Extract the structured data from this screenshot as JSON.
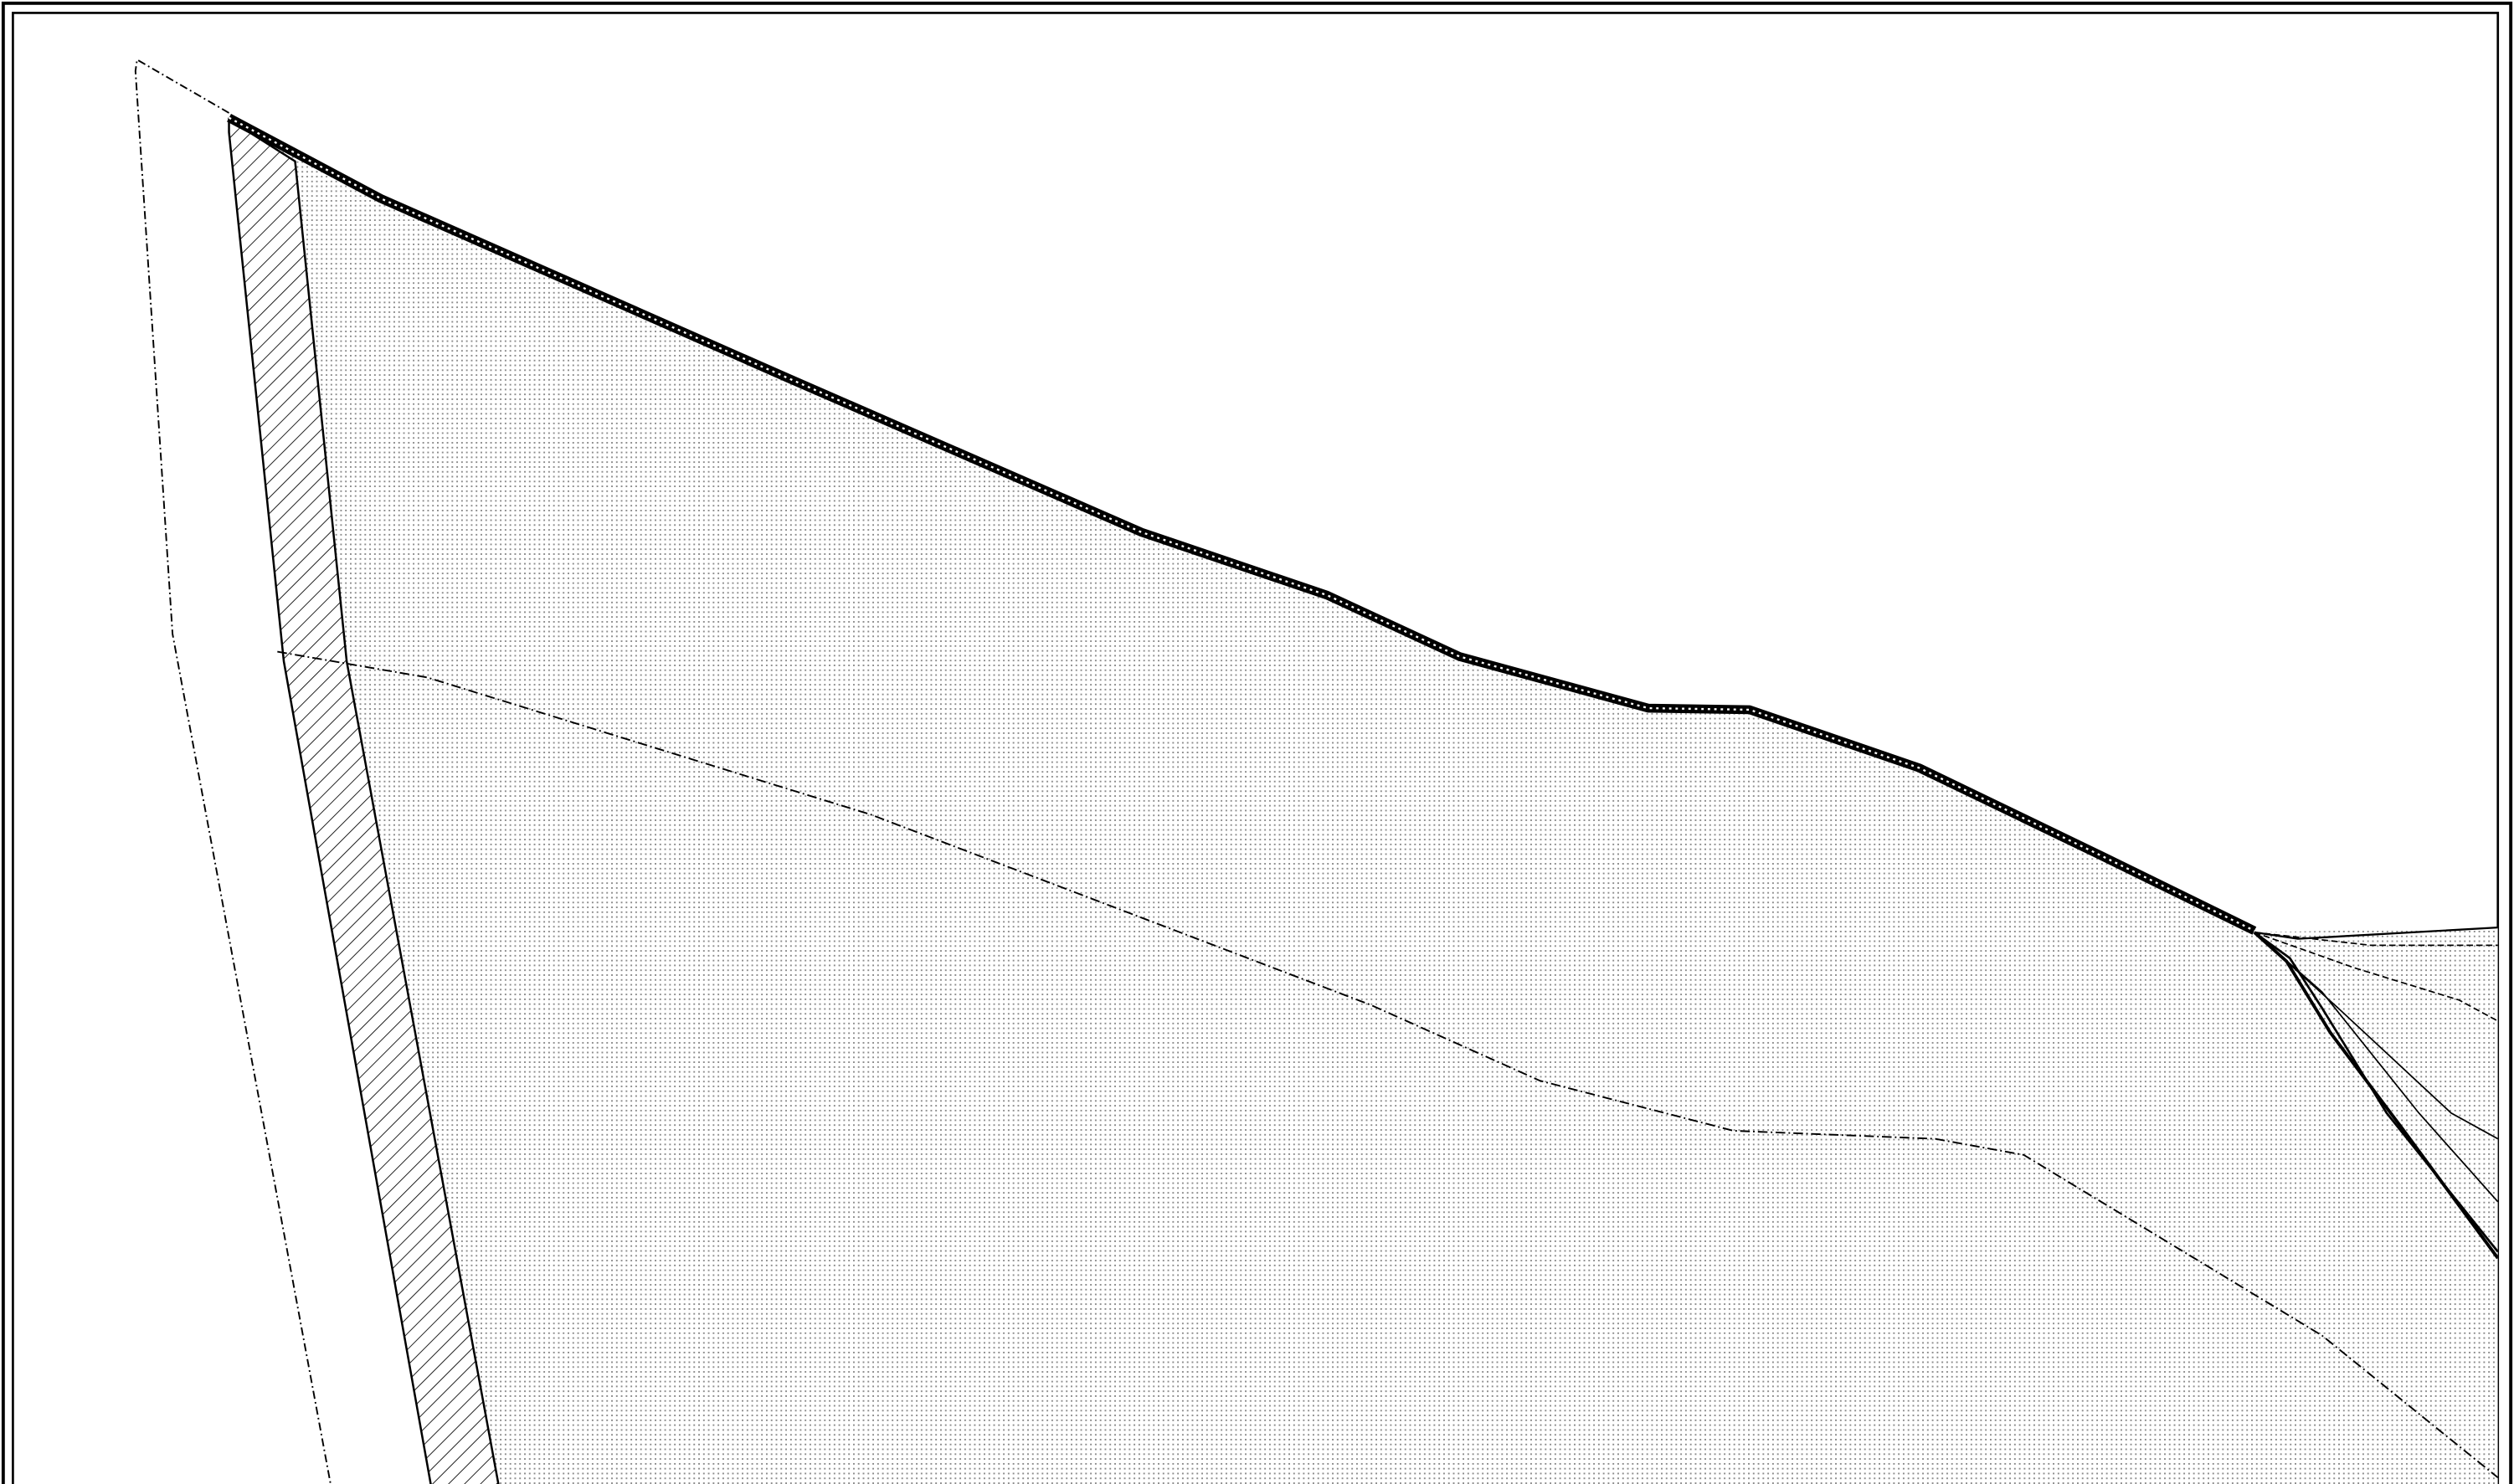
{
  "drawing": {
    "kind": "technical-cross-section",
    "text_labels": [],
    "fills": {
      "main_region": "stipple",
      "side_strip": "diagonal-hatch",
      "top_crust": "dark-band"
    },
    "colors": {
      "ink": "#000000",
      "paper": "#ffffff",
      "stipple": "#9a9a9a",
      "hatch": "#000000"
    }
  }
}
